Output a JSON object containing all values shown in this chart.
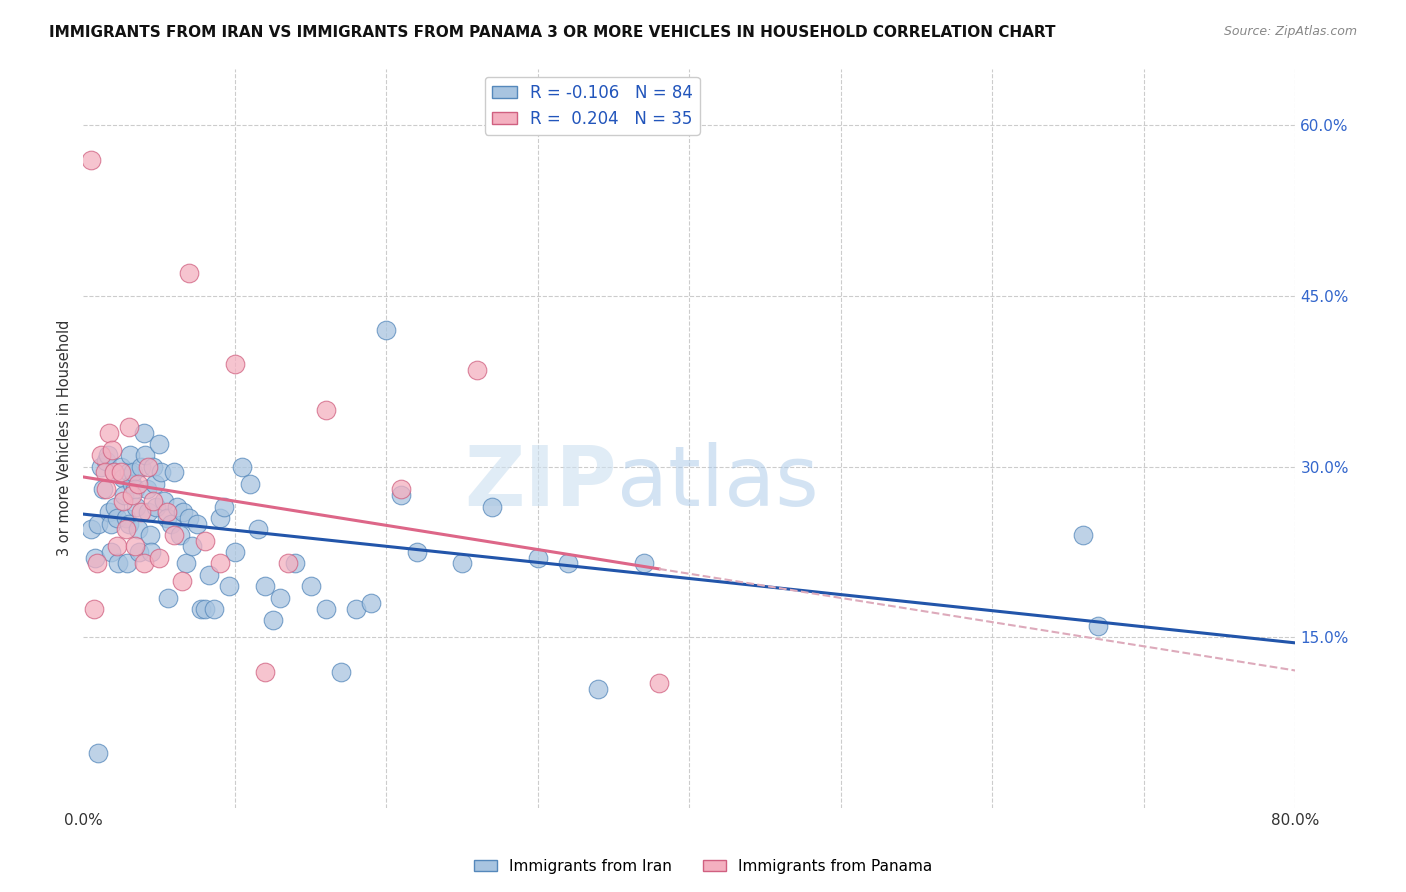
{
  "title": "IMMIGRANTS FROM IRAN VS IMMIGRANTS FROM PANAMA 3 OR MORE VEHICLES IN HOUSEHOLD CORRELATION CHART",
  "source": "Source: ZipAtlas.com",
  "ylabel": "3 or more Vehicles in Household",
  "xlim": [
    0.0,
    0.8
  ],
  "ylim": [
    0.0,
    0.65
  ],
  "y_ticks_right": [
    0.15,
    0.3,
    0.45,
    0.6
  ],
  "iran_color": "#a8c4e0",
  "iran_edge_color": "#5588bb",
  "panama_color": "#f4b0c0",
  "panama_edge_color": "#d06080",
  "iran_R": -0.106,
  "iran_N": 84,
  "panama_R": 0.204,
  "panama_N": 35,
  "legend_label_iran": "Immigrants from Iran",
  "legend_label_panama": "Immigrants from Panama",
  "watermark_zip": "ZIP",
  "watermark_atlas": "atlas",
  "iran_line_color": "#2255aa",
  "panama_line_solid_color": "#dd6688",
  "panama_line_dashed_color": "#ddaabb",
  "iran_scatter_x": [
    0.005,
    0.008,
    0.01,
    0.01,
    0.012,
    0.013,
    0.015,
    0.016,
    0.017,
    0.018,
    0.018,
    0.02,
    0.021,
    0.022,
    0.023,
    0.025,
    0.026,
    0.027,
    0.028,
    0.029,
    0.03,
    0.03,
    0.031,
    0.032,
    0.033,
    0.034,
    0.035,
    0.036,
    0.037,
    0.038,
    0.04,
    0.041,
    0.042,
    0.043,
    0.044,
    0.045,
    0.046,
    0.047,
    0.048,
    0.05,
    0.051,
    0.053,
    0.055,
    0.056,
    0.058,
    0.06,
    0.062,
    0.064,
    0.066,
    0.068,
    0.07,
    0.072,
    0.075,
    0.078,
    0.08,
    0.083,
    0.086,
    0.09,
    0.093,
    0.096,
    0.1,
    0.105,
    0.11,
    0.115,
    0.12,
    0.125,
    0.13,
    0.14,
    0.15,
    0.16,
    0.17,
    0.18,
    0.19,
    0.2,
    0.21,
    0.22,
    0.25,
    0.27,
    0.3,
    0.32,
    0.34,
    0.37,
    0.66,
    0.67
  ],
  "iran_scatter_y": [
    0.245,
    0.22,
    0.048,
    0.25,
    0.3,
    0.28,
    0.305,
    0.31,
    0.26,
    0.25,
    0.225,
    0.295,
    0.265,
    0.255,
    0.215,
    0.3,
    0.29,
    0.275,
    0.255,
    0.215,
    0.295,
    0.25,
    0.31,
    0.285,
    0.295,
    0.28,
    0.265,
    0.245,
    0.225,
    0.3,
    0.33,
    0.31,
    0.28,
    0.26,
    0.24,
    0.225,
    0.3,
    0.285,
    0.265,
    0.32,
    0.295,
    0.27,
    0.255,
    0.185,
    0.25,
    0.295,
    0.265,
    0.24,
    0.26,
    0.215,
    0.255,
    0.23,
    0.25,
    0.175,
    0.175,
    0.205,
    0.175,
    0.255,
    0.265,
    0.195,
    0.225,
    0.3,
    0.285,
    0.245,
    0.195,
    0.165,
    0.185,
    0.215,
    0.195,
    0.175,
    0.12,
    0.175,
    0.18,
    0.42,
    0.275,
    0.225,
    0.215,
    0.265,
    0.22,
    0.215,
    0.105,
    0.215,
    0.24,
    0.16
  ],
  "panama_scatter_x": [
    0.005,
    0.007,
    0.009,
    0.012,
    0.014,
    0.015,
    0.017,
    0.019,
    0.02,
    0.022,
    0.025,
    0.026,
    0.028,
    0.03,
    0.032,
    0.034,
    0.036,
    0.038,
    0.04,
    0.043,
    0.046,
    0.05,
    0.055,
    0.06,
    0.065,
    0.07,
    0.08,
    0.09,
    0.1,
    0.12,
    0.135,
    0.16,
    0.21,
    0.26,
    0.38
  ],
  "panama_scatter_y": [
    0.57,
    0.175,
    0.215,
    0.31,
    0.295,
    0.28,
    0.33,
    0.315,
    0.295,
    0.23,
    0.295,
    0.27,
    0.245,
    0.335,
    0.275,
    0.23,
    0.285,
    0.26,
    0.215,
    0.3,
    0.27,
    0.22,
    0.26,
    0.24,
    0.2,
    0.47,
    0.235,
    0.215,
    0.39,
    0.12,
    0.215,
    0.35,
    0.28,
    0.385,
    0.11
  ]
}
